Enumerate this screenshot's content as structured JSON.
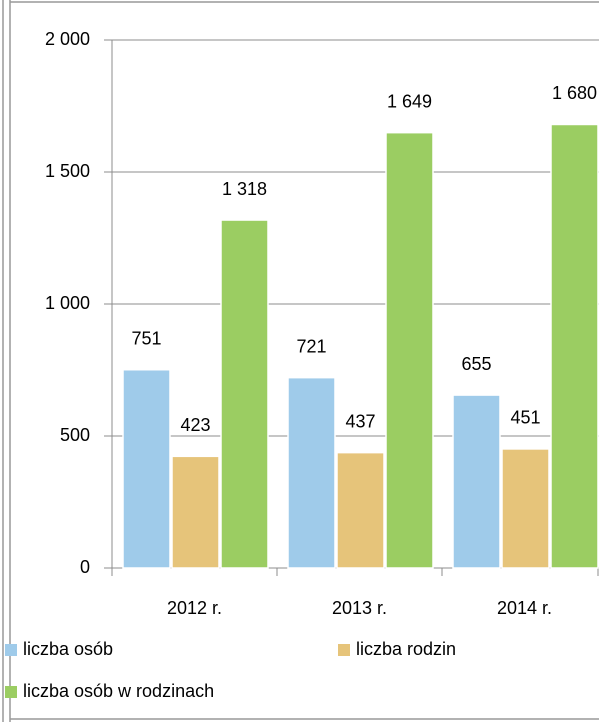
{
  "chart_data": {
    "type": "bar",
    "categories": [
      "2012 r.",
      "2013 r.",
      "2014 r."
    ],
    "series": [
      {
        "name": "liczba osób",
        "color": "#9fcbea",
        "values": [
          751,
          721,
          655
        ]
      },
      {
        "name": "liczba rodzin",
        "color": "#e6c47a",
        "values": [
          423,
          437,
          451
        ]
      },
      {
        "name": "liczba osób w rodzinach",
        "color": "#9bcd62",
        "values": [
          1318,
          1649,
          1680
        ],
        "value_labels": [
          "1 318",
          "1 649",
          "1 680"
        ]
      }
    ],
    "ylim": [
      0,
      2000
    ],
    "yticks": [
      0,
      500,
      {
        "value": 1000,
        "label": "1 000"
      },
      {
        "value": 1500,
        "label": "1 500"
      },
      {
        "value": 2000,
        "label": "2 000"
      }
    ],
    "grid": true,
    "legend": "bottom"
  }
}
